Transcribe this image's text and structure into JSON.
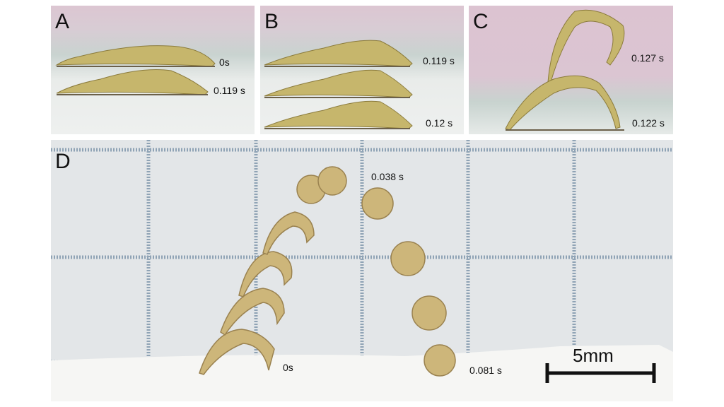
{
  "panels": {
    "A": {
      "letter": "A",
      "times": [
        "0s",
        "0.119 s"
      ]
    },
    "B": {
      "letter": "B",
      "times": [
        "0.119 s",
        "0.12 s"
      ]
    },
    "C": {
      "letter": "C",
      "times": [
        "0.127 s",
        "0.122 s"
      ]
    },
    "D": {
      "letter": "D",
      "times": [
        "0s",
        "0.038 s",
        "0.081 s"
      ],
      "scale_bar": "5mm"
    }
  },
  "colors": {
    "larva": "#c9b46a",
    "grid": "#8fa3b5",
    "pink_background": "#dcc6d2"
  }
}
